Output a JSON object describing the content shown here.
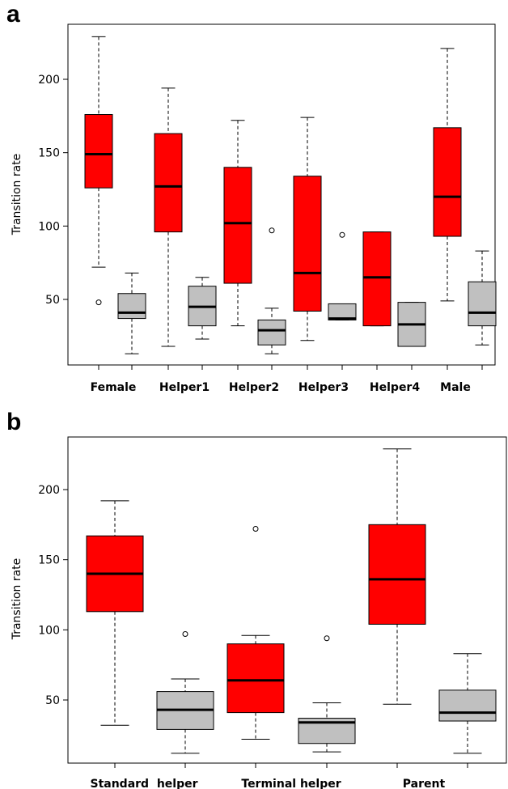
{
  "chart_data": [
    {
      "type": "box",
      "panel_label": "a",
      "ylabel": "Transition rate",
      "yticks": [
        50,
        100,
        150,
        200
      ],
      "ylim": [
        8,
        237
      ],
      "categories": [
        "Female",
        "Helper1",
        "Helper2",
        "Helper3",
        "Helper4",
        "Male"
      ],
      "colors": {
        "red": "#ff0000",
        "gray": "#c0c0c0"
      },
      "boxes": [
        {
          "color": "red",
          "min": 72,
          "q1": 126,
          "median": 149,
          "q3": 176,
          "max": 229,
          "outliers": [
            48
          ]
        },
        {
          "color": "gray",
          "min": 13,
          "q1": 37,
          "median": 41,
          "q3": 54,
          "max": 68,
          "outliers": []
        },
        {
          "color": "red",
          "min": 18,
          "q1": 96,
          "median": 127,
          "q3": 163,
          "max": 194,
          "outliers": []
        },
        {
          "color": "gray",
          "min": 23,
          "q1": 32,
          "median": 45,
          "q3": 59,
          "max": 65,
          "outliers": []
        },
        {
          "color": "red",
          "min": 32,
          "q1": 61,
          "median": 102,
          "q3": 140,
          "max": 172,
          "outliers": []
        },
        {
          "color": "gray",
          "min": 13,
          "q1": 19,
          "median": 29,
          "q3": 36,
          "max": 44,
          "outliers": [
            97
          ]
        },
        {
          "color": "red",
          "min": 22,
          "q1": 42,
          "median": 68,
          "q3": 134,
          "max": 174,
          "outliers": []
        },
        {
          "color": "gray",
          "min": 36,
          "q1": 36,
          "median": 37,
          "q3": 47,
          "max": 47,
          "outliers": [
            94
          ]
        },
        {
          "color": "red",
          "min": 32,
          "q1": 32,
          "median": 65,
          "q3": 96,
          "max": 96,
          "outliers": []
        },
        {
          "color": "gray",
          "min": 18,
          "q1": 18,
          "median": 33,
          "q3": 48,
          "max": 48,
          "outliers": []
        },
        {
          "color": "red",
          "min": 49,
          "q1": 93,
          "median": 120,
          "q3": 167,
          "max": 221,
          "outliers": []
        },
        {
          "color": "gray",
          "min": 19,
          "q1": 32,
          "median": 41,
          "q3": 62,
          "max": 83,
          "outliers": []
        }
      ]
    },
    {
      "type": "box",
      "panel_label": "b",
      "ylabel": "Transition rate",
      "yticks": [
        50,
        100,
        150,
        200
      ],
      "ylim": [
        8,
        237
      ],
      "categories": [
        "Standard  helper",
        "Terminal helper",
        "Parent"
      ],
      "colors": {
        "red": "#ff0000",
        "gray": "#c0c0c0"
      },
      "boxes": [
        {
          "color": "red",
          "min": 32,
          "q1": 113,
          "median": 140,
          "q3": 167,
          "max": 192,
          "outliers": []
        },
        {
          "color": "gray",
          "min": 12,
          "q1": 29,
          "median": 43,
          "q3": 56,
          "max": 65,
          "outliers": [
            97
          ]
        },
        {
          "color": "red",
          "min": 22,
          "q1": 41,
          "median": 64,
          "q3": 90,
          "max": 96,
          "outliers": [
            172
          ]
        },
        {
          "color": "gray",
          "min": 13,
          "q1": 19,
          "median": 34,
          "q3": 37,
          "max": 48,
          "outliers": [
            94
          ]
        },
        {
          "color": "red",
          "min": 47,
          "q1": 104,
          "median": 136,
          "q3": 175,
          "max": 229,
          "outliers": []
        },
        {
          "color": "gray",
          "min": 12,
          "q1": 35,
          "median": 41,
          "q3": 57,
          "max": 83,
          "outliers": []
        }
      ]
    }
  ]
}
